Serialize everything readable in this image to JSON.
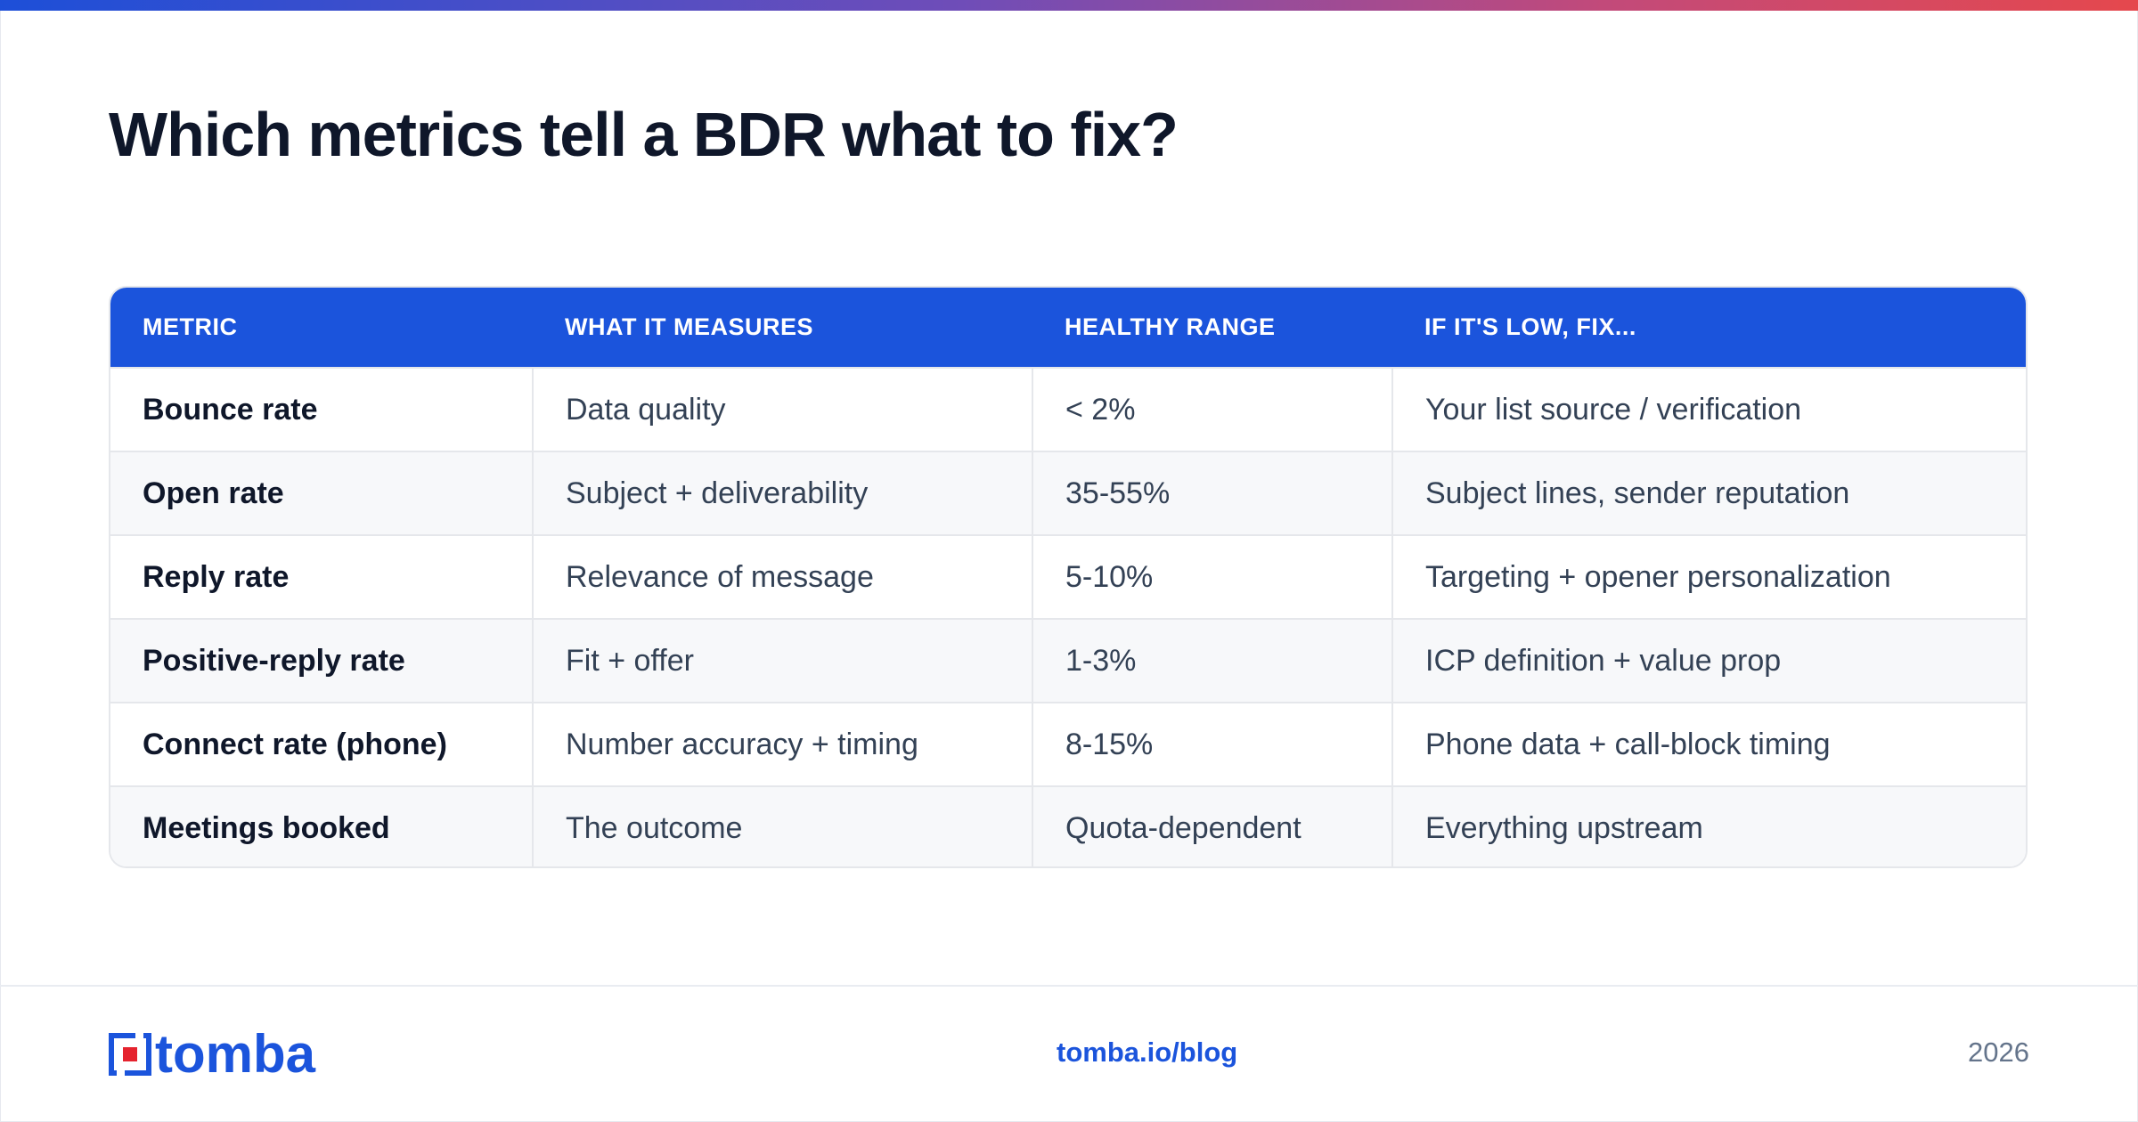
{
  "title": "Which metrics tell a BDR what to fix?",
  "table": {
    "headers": [
      "METRIC",
      "WHAT IT MEASURES",
      "HEALTHY RANGE",
      "IF IT'S LOW, FIX..."
    ],
    "rows": [
      [
        "Bounce rate",
        "Data quality",
        "< 2%",
        "Your list source / verification"
      ],
      [
        "Open rate",
        "Subject + deliverability",
        "35-55%",
        "Subject lines, sender reputation"
      ],
      [
        "Reply rate",
        "Relevance of message",
        "5-10%",
        "Targeting + opener personalization"
      ],
      [
        "Positive-reply rate",
        "Fit + offer",
        "1-3%",
        "ICP definition + value prop"
      ],
      [
        "Connect rate (phone)",
        "Number accuracy + timing",
        "8-15%",
        "Phone data + call-block timing"
      ],
      [
        "Meetings booked",
        "The outcome",
        "Quota-dependent",
        "Everything upstream"
      ]
    ]
  },
  "footer": {
    "logo_text": "tomba",
    "link": "tomba.io/blog",
    "year": "2026"
  },
  "colors": {
    "accent": "#1b54dc",
    "title": "#0f172a",
    "body_text": "#334155",
    "muted": "#64748b",
    "logo_red": "#e5232e"
  },
  "icons": {
    "logo": "tomba-logo-mark"
  }
}
